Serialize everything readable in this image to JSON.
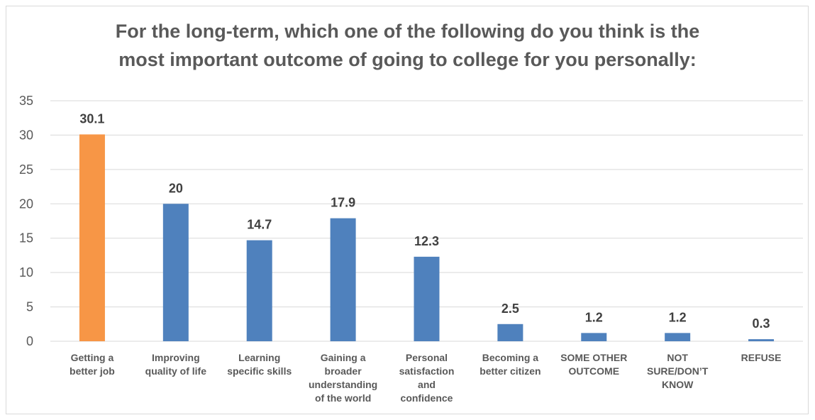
{
  "chart_data": {
    "type": "bar",
    "title": "For the long-term, which one of the following do you think is the most important outcome of going to college for you personally:",
    "title_lines": [
      "For the long-term, which one of the following do you think is the",
      "most important outcome of going to college for you personally:"
    ],
    "categories": [
      [
        "Getting a",
        "better job"
      ],
      [
        "Improving",
        "quality of life"
      ],
      [
        "Learning",
        "specific skills"
      ],
      [
        "Gaining a",
        "broader",
        "understanding",
        "of the world"
      ],
      [
        "Personal",
        "satisfaction",
        "and",
        "confidence"
      ],
      [
        "Becoming a",
        "better citizen"
      ],
      [
        "SOME OTHER",
        "OUTCOME"
      ],
      [
        "NOT",
        "SURE/DON’T",
        "KNOW"
      ],
      [
        "REFUSE"
      ]
    ],
    "values": [
      30.1,
      20,
      14.7,
      17.9,
      12.3,
      2.5,
      1.2,
      1.2,
      0.3
    ],
    "data_labels": [
      "30.1",
      "20",
      "14.7",
      "17.9",
      "12.3",
      "2.5",
      "1.2",
      "1.2",
      "0.3"
    ],
    "highlight_index": 0,
    "colors": {
      "default": "#4f81bd",
      "highlight": "#f79646",
      "grid": "#d9d9d9"
    },
    "ylim": [
      0,
      35
    ],
    "yticks": [
      0,
      5,
      10,
      15,
      20,
      25,
      30,
      35
    ],
    "grid": true,
    "legend": "none"
  }
}
